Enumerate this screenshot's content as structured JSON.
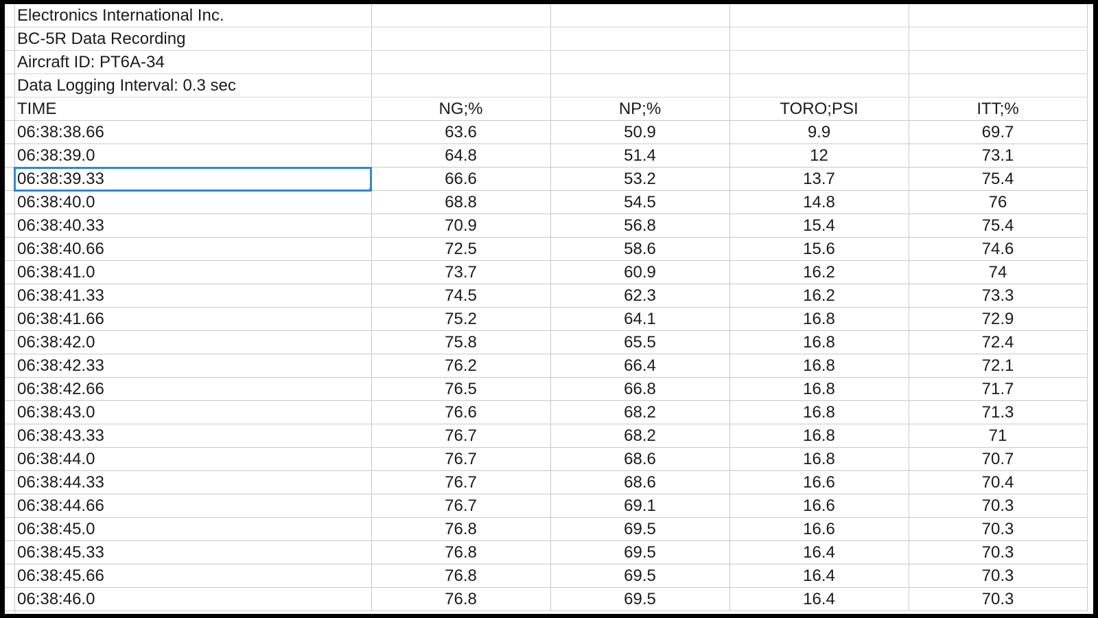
{
  "sheet": {
    "info": [
      "Electronics International Inc.",
      "BC-5R Data Recording",
      "Aircraft ID: PT6A-34",
      "Data Logging Interval: 0.3 sec"
    ],
    "headers": [
      "TIME",
      "NG;%",
      "NP;%",
      "TORO;PSI",
      "ITT;%"
    ],
    "selected_cell": "06:38:39.33",
    "rows": [
      [
        "06:38:38.66",
        "63.6",
        "50.9",
        "9.9",
        "69.7"
      ],
      [
        "06:38:39.0",
        "64.8",
        "51.4",
        "12",
        "73.1"
      ],
      [
        "06:38:39.33",
        "66.6",
        "53.2",
        "13.7",
        "75.4"
      ],
      [
        "06:38:40.0",
        "68.8",
        "54.5",
        "14.8",
        "76"
      ],
      [
        "06:38:40.33",
        "70.9",
        "56.8",
        "15.4",
        "75.4"
      ],
      [
        "06:38:40.66",
        "72.5",
        "58.6",
        "15.6",
        "74.6"
      ],
      [
        "06:38:41.0",
        "73.7",
        "60.9",
        "16.2",
        "74"
      ],
      [
        "06:38:41.33",
        "74.5",
        "62.3",
        "16.2",
        "73.3"
      ],
      [
        "06:38:41.66",
        "75.2",
        "64.1",
        "16.8",
        "72.9"
      ],
      [
        "06:38:42.0",
        "75.8",
        "65.5",
        "16.8",
        "72.4"
      ],
      [
        "06:38:42.33",
        "76.2",
        "66.4",
        "16.8",
        "72.1"
      ],
      [
        "06:38:42.66",
        "76.5",
        "66.8",
        "16.8",
        "71.7"
      ],
      [
        "06:38:43.0",
        "76.6",
        "68.2",
        "16.8",
        "71.3"
      ],
      [
        "06:38:43.33",
        "76.7",
        "68.2",
        "16.8",
        "71"
      ],
      [
        "06:38:44.0",
        "76.7",
        "68.6",
        "16.8",
        "70.7"
      ],
      [
        "06:38:44.33",
        "76.7",
        "68.6",
        "16.6",
        "70.4"
      ],
      [
        "06:38:44.66",
        "76.7",
        "69.1",
        "16.6",
        "70.3"
      ],
      [
        "06:38:45.0",
        "76.8",
        "69.5",
        "16.6",
        "70.3"
      ],
      [
        "06:38:45.33",
        "76.8",
        "69.5",
        "16.4",
        "70.3"
      ],
      [
        "06:38:45.66",
        "76.8",
        "69.5",
        "16.4",
        "70.3"
      ],
      [
        "06:38:46.0",
        "76.8",
        "69.5",
        "16.4",
        "70.3"
      ]
    ]
  },
  "colors": {
    "selection": "#2a8ad6",
    "gridline": "#c9c9c9",
    "frame": "#000000"
  }
}
